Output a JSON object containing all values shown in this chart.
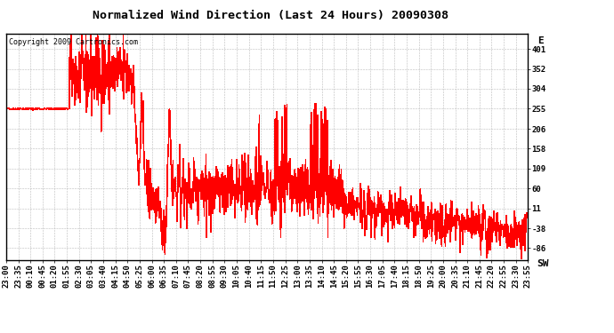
{
  "title": "Normalized Wind Direction (Last 24 Hours) 20090308",
  "copyright_text": "Copyright 2009 Cartronics.com",
  "yticks": [
    401,
    352,
    304,
    255,
    206,
    158,
    109,
    60,
    11,
    -38,
    -86
  ],
  "ytick_labels_right": [
    "401",
    "352",
    "304",
    "255",
    "206",
    "158",
    "109",
    "60",
    "11",
    "-38",
    "-86"
  ],
  "ylabel_top": "E",
  "ylabel_bottom": "SW",
  "ylim": [
    -115,
    440
  ],
  "xtick_labels": [
    "23:00",
    "23:35",
    "00:10",
    "00:45",
    "01:20",
    "01:55",
    "02:30",
    "03:05",
    "03:40",
    "04:15",
    "04:50",
    "05:25",
    "06:00",
    "06:35",
    "07:10",
    "07:45",
    "08:20",
    "08:55",
    "09:30",
    "10:05",
    "10:40",
    "11:15",
    "11:50",
    "12:25",
    "13:00",
    "13:35",
    "14:10",
    "14:45",
    "15:20",
    "15:55",
    "16:30",
    "17:05",
    "17:40",
    "18:15",
    "18:50",
    "19:25",
    "20:00",
    "20:35",
    "21:10",
    "21:45",
    "22:20",
    "22:55",
    "23:30",
    "23:55"
  ],
  "line_color": "#ff0000",
  "background_color": "#ffffff",
  "grid_color": "#bbbbbb",
  "title_fontsize": 9.5,
  "copyright_fontsize": 6,
  "tick_fontsize": 6.5
}
